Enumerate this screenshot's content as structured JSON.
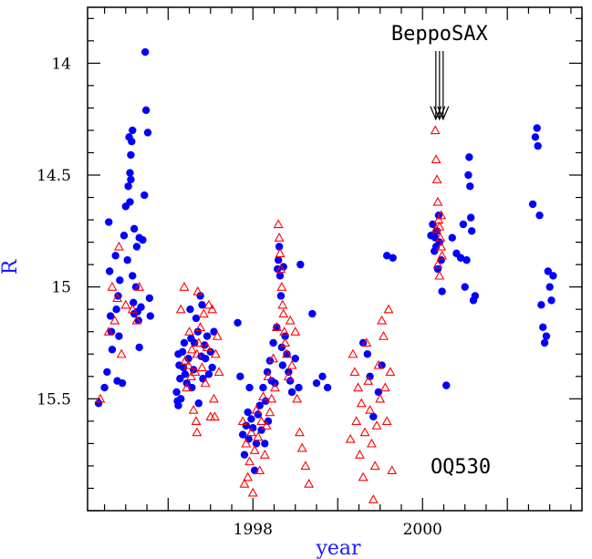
{
  "chart_data": {
    "type": "scatter",
    "title": "",
    "xlabel": "year",
    "ylabel": "R",
    "xlim": [
      1996.05,
      2001.88
    ],
    "ylim": [
      16.0,
      13.75
    ],
    "y_inverted": true,
    "x_ticks": [
      1998,
      2000
    ],
    "x_tick_labels": [
      "1998",
      "2000"
    ],
    "y_ticks": [
      14,
      14.5,
      15,
      15.5
    ],
    "y_tick_labels": [
      "14",
      "14.5",
      "15",
      "15.5"
    ],
    "grid": false,
    "annotations": [
      {
        "text": "BeppoSAX",
        "x": 2000.2,
        "arrow_tip_y": 14.25
      },
      {
        "text": "OQ530",
        "x": 2000.45,
        "y": 15.8
      }
    ],
    "colors": {
      "series_1": "#0000ff",
      "series_2": "#ff0000",
      "axis_title": "#1a1aff"
    },
    "series": [
      {
        "marker": "filled-circle",
        "color": "#0000ff",
        "points": [
          [
            1996.18,
            15.52
          ],
          [
            1996.25,
            15.45
          ],
          [
            1996.28,
            15.38
          ],
          [
            1996.3,
            14.71
          ],
          [
            1996.31,
            14.93
          ],
          [
            1996.32,
            15.13
          ],
          [
            1996.33,
            15.2
          ],
          [
            1996.34,
            15.28
          ],
          [
            1996.38,
            14.86
          ],
          [
            1996.39,
            15.1
          ],
          [
            1996.4,
            15.42
          ],
          [
            1996.41,
            15.04
          ],
          [
            1996.42,
            15.22
          ],
          [
            1996.43,
            14.97
          ],
          [
            1996.46,
            15.43
          ],
          [
            1996.48,
            14.77
          ],
          [
            1996.5,
            14.64
          ],
          [
            1996.52,
            14.88
          ],
          [
            1996.53,
            14.55
          ],
          [
            1996.54,
            14.33
          ],
          [
            1996.55,
            14.62
          ],
          [
            1996.55,
            14.49
          ],
          [
            1996.56,
            14.52
          ],
          [
            1996.56,
            14.41
          ],
          [
            1996.57,
            14.35
          ],
          [
            1996.58,
            14.3
          ],
          [
            1996.58,
            14.95
          ],
          [
            1996.59,
            15.07
          ],
          [
            1996.6,
            14.74
          ],
          [
            1996.6,
            15.12
          ],
          [
            1996.62,
            15.0
          ],
          [
            1996.63,
            14.82
          ],
          [
            1996.64,
            15.11
          ],
          [
            1996.65,
            15.15
          ],
          [
            1996.66,
            15.27
          ],
          [
            1996.66,
            14.78
          ],
          [
            1996.68,
            15.09
          ],
          [
            1996.7,
            14.79
          ],
          [
            1996.72,
            14.59
          ],
          [
            1996.73,
            13.95
          ],
          [
            1996.74,
            14.21
          ],
          [
            1996.76,
            14.31
          ],
          [
            1996.78,
            15.05
          ],
          [
            1996.79,
            15.13
          ],
          [
            1997.1,
            15.47
          ],
          [
            1997.11,
            15.51
          ],
          [
            1997.12,
            15.53
          ],
          [
            1997.12,
            15.3
          ],
          [
            1997.13,
            15.35
          ],
          [
            1997.14,
            15.41
          ],
          [
            1997.15,
            15.5
          ],
          [
            1997.17,
            15.29
          ],
          [
            1997.18,
            15.36
          ],
          [
            1997.19,
            15.25
          ],
          [
            1997.2,
            15.39
          ],
          [
            1997.22,
            15.43
          ],
          [
            1997.24,
            15.32
          ],
          [
            1997.26,
            15.1
          ],
          [
            1997.27,
            15.23
          ],
          [
            1997.28,
            15.45
          ],
          [
            1997.3,
            15.37
          ],
          [
            1997.31,
            15.25
          ],
          [
            1997.33,
            15.14
          ],
          [
            1997.35,
            15.2
          ],
          [
            1997.36,
            15.52
          ],
          [
            1997.38,
            15.04
          ],
          [
            1997.39,
            15.31
          ],
          [
            1997.4,
            15.08
          ],
          [
            1997.41,
            15.41
          ],
          [
            1997.43,
            15.26
          ],
          [
            1997.44,
            15.32
          ],
          [
            1997.46,
            15.22
          ],
          [
            1997.48,
            15.39
          ],
          [
            1997.5,
            15.29
          ],
          [
            1997.52,
            15.36
          ],
          [
            1997.54,
            15.2
          ],
          [
            1997.82,
            15.16
          ],
          [
            1997.85,
            15.4
          ],
          [
            1997.88,
            15.66
          ],
          [
            1997.9,
            15.75
          ],
          [
            1997.92,
            15.62
          ],
          [
            1997.94,
            15.56
          ],
          [
            1997.95,
            15.68
          ],
          [
            1997.96,
            15.45
          ],
          [
            1997.98,
            15.59
          ],
          [
            1998.0,
            15.63
          ],
          [
            1998.02,
            15.82
          ],
          [
            1998.04,
            15.7
          ],
          [
            1998.06,
            15.57
          ],
          [
            1998.08,
            15.53
          ],
          [
            1998.1,
            15.64
          ],
          [
            1998.12,
            15.45
          ],
          [
            1998.14,
            15.7
          ],
          [
            1998.15,
            15.51
          ],
          [
            1998.17,
            15.38
          ],
          [
            1998.18,
            15.6
          ],
          [
            1998.2,
            15.33
          ],
          [
            1998.22,
            15.42
          ],
          [
            1998.24,
            15.25
          ],
          [
            1998.26,
            15.43
          ],
          [
            1998.28,
            15.18
          ],
          [
            1998.29,
            14.92
          ],
          [
            1998.3,
            14.88
          ],
          [
            1998.31,
            14.82
          ],
          [
            1998.32,
            14.95
          ],
          [
            1998.33,
            15.04
          ],
          [
            1998.34,
            15.27
          ],
          [
            1998.35,
            15.35
          ],
          [
            1998.36,
            14.91
          ],
          [
            1998.38,
            15.22
          ],
          [
            1998.4,
            15.3
          ],
          [
            1998.42,
            15.38
          ],
          [
            1998.44,
            15.42
          ],
          [
            1998.46,
            15.47
          ],
          [
            1998.5,
            15.32
          ],
          [
            1998.54,
            15.45
          ],
          [
            1998.56,
            14.9
          ],
          [
            1998.7,
            15.12
          ],
          [
            1998.75,
            15.43
          ],
          [
            1998.82,
            15.4
          ],
          [
            1998.88,
            15.45
          ],
          [
            1999.3,
            15.25
          ],
          [
            1999.35,
            15.3
          ],
          [
            1999.38,
            15.4
          ],
          [
            1999.42,
            15.58
          ],
          [
            1999.48,
            15.47
          ],
          [
            1999.52,
            15.35
          ],
          [
            1999.58,
            14.86
          ],
          [
            1999.65,
            14.87
          ],
          [
            2000.1,
            14.77
          ],
          [
            2000.12,
            14.72
          ],
          [
            2000.14,
            14.84
          ],
          [
            2000.15,
            14.78
          ],
          [
            2000.16,
            14.82
          ],
          [
            2000.17,
            14.75
          ],
          [
            2000.18,
            14.92
          ],
          [
            2000.19,
            14.68
          ],
          [
            2000.2,
            14.8
          ],
          [
            2000.22,
            14.88
          ],
          [
            2000.23,
            15.02
          ],
          [
            2000.28,
            15.44
          ],
          [
            2000.35,
            14.78
          ],
          [
            2000.4,
            14.85
          ],
          [
            2000.45,
            14.87
          ],
          [
            2000.48,
            14.72
          ],
          [
            2000.5,
            15.0
          ],
          [
            2000.52,
            14.88
          ],
          [
            2000.54,
            14.5
          ],
          [
            2000.55,
            14.42
          ],
          [
            2000.56,
            14.55
          ],
          [
            2000.57,
            14.69
          ],
          [
            2000.58,
            14.75
          ],
          [
            2000.6,
            15.06
          ],
          [
            2000.62,
            15.04
          ],
          [
            2001.3,
            14.63
          ],
          [
            2001.33,
            14.33
          ],
          [
            2001.35,
            14.29
          ],
          [
            2001.36,
            14.37
          ],
          [
            2001.38,
            14.68
          ],
          [
            2001.4,
            15.08
          ],
          [
            2001.42,
            15.18
          ],
          [
            2001.44,
            15.25
          ],
          [
            2001.46,
            15.22
          ],
          [
            2001.48,
            14.93
          ],
          [
            2001.5,
            15.0
          ],
          [
            2001.52,
            15.06
          ],
          [
            2001.54,
            14.95
          ]
        ]
      },
      {
        "marker": "open-triangle",
        "color": "#ff0000",
        "points": [
          [
            1996.2,
            15.5
          ],
          [
            1996.3,
            15.2
          ],
          [
            1996.34,
            15.0
          ],
          [
            1996.37,
            15.15
          ],
          [
            1996.4,
            15.05
          ],
          [
            1996.42,
            14.82
          ],
          [
            1996.45,
            15.3
          ],
          [
            1996.5,
            15.08
          ],
          [
            1996.58,
            15.1
          ],
          [
            1996.63,
            15.15
          ],
          [
            1996.66,
            15.0
          ],
          [
            1997.15,
            15.1
          ],
          [
            1997.19,
            15.0
          ],
          [
            1997.2,
            15.33
          ],
          [
            1997.22,
            15.45
          ],
          [
            1997.24,
            15.35
          ],
          [
            1997.25,
            15.2
          ],
          [
            1997.27,
            15.4
          ],
          [
            1997.28,
            15.28
          ],
          [
            1997.3,
            15.55
          ],
          [
            1997.32,
            15.38
          ],
          [
            1997.33,
            15.6
          ],
          [
            1997.34,
            15.3
          ],
          [
            1997.35,
            15.02
          ],
          [
            1997.36,
            15.25
          ],
          [
            1997.38,
            15.18
          ],
          [
            1997.4,
            15.36
          ],
          [
            1997.42,
            15.12
          ],
          [
            1997.44,
            15.43
          ],
          [
            1997.46,
            15.27
          ],
          [
            1997.48,
            15.08
          ],
          [
            1997.5,
            15.58
          ],
          [
            1997.52,
            15.1
          ],
          [
            1997.54,
            15.5
          ],
          [
            1997.56,
            15.3
          ],
          [
            1997.58,
            15.22
          ],
          [
            1997.6,
            15.38
          ],
          [
            1997.34,
            15.65
          ],
          [
            1997.55,
            15.58
          ],
          [
            1997.88,
            15.6
          ],
          [
            1997.9,
            15.88
          ],
          [
            1997.92,
            15.7
          ],
          [
            1997.94,
            15.85
          ],
          [
            1997.96,
            15.78
          ],
          [
            1997.98,
            15.65
          ],
          [
            1998.0,
            15.92
          ],
          [
            1998.02,
            15.73
          ],
          [
            1998.04,
            15.55
          ],
          [
            1998.06,
            15.67
          ],
          [
            1998.08,
            15.82
          ],
          [
            1998.1,
            15.6
          ],
          [
            1998.12,
            15.49
          ],
          [
            1998.14,
            15.75
          ],
          [
            1998.16,
            15.62
          ],
          [
            1998.18,
            15.4
          ],
          [
            1998.2,
            15.56
          ],
          [
            1998.22,
            15.5
          ],
          [
            1998.24,
            15.32
          ],
          [
            1998.26,
            15.45
          ],
          [
            1998.28,
            15.18
          ],
          [
            1998.3,
            14.72
          ],
          [
            1998.31,
            14.78
          ],
          [
            1998.32,
            14.85
          ],
          [
            1998.33,
            14.92
          ],
          [
            1998.34,
            15.0
          ],
          [
            1998.35,
            15.08
          ],
          [
            1998.36,
            15.12
          ],
          [
            1998.37,
            15.2
          ],
          [
            1998.38,
            15.25
          ],
          [
            1998.4,
            15.3
          ],
          [
            1998.42,
            15.4
          ],
          [
            1998.44,
            15.15
          ],
          [
            1998.46,
            15.35
          ],
          [
            1998.5,
            15.2
          ],
          [
            1998.52,
            15.5
          ],
          [
            1998.55,
            15.65
          ],
          [
            1998.58,
            15.72
          ],
          [
            1998.62,
            15.8
          ],
          [
            1998.66,
            15.88
          ],
          [
            1999.15,
            15.68
          ],
          [
            1999.18,
            15.3
          ],
          [
            1999.2,
            15.38
          ],
          [
            1999.22,
            15.6
          ],
          [
            1999.24,
            15.45
          ],
          [
            1999.26,
            15.75
          ],
          [
            1999.28,
            15.52
          ],
          [
            1999.3,
            15.85
          ],
          [
            1999.32,
            15.65
          ],
          [
            1999.34,
            15.25
          ],
          [
            1999.36,
            15.42
          ],
          [
            1999.38,
            15.55
          ],
          [
            1999.4,
            15.7
          ],
          [
            1999.42,
            15.95
          ],
          [
            1999.44,
            15.8
          ],
          [
            1999.46,
            15.62
          ],
          [
            1999.48,
            15.35
          ],
          [
            1999.5,
            15.5
          ],
          [
            1999.52,
            15.15
          ],
          [
            1999.54,
            15.22
          ],
          [
            1999.56,
            15.45
          ],
          [
            1999.58,
            15.6
          ],
          [
            1999.6,
            15.1
          ],
          [
            1999.62,
            15.38
          ],
          [
            1999.64,
            15.82
          ],
          [
            2000.15,
            14.3
          ],
          [
            2000.16,
            14.43
          ],
          [
            2000.17,
            14.52
          ],
          [
            2000.18,
            14.62
          ],
          [
            2000.19,
            14.7
          ],
          [
            2000.2,
            14.73
          ],
          [
            2000.21,
            14.78
          ],
          [
            2000.22,
            14.82
          ],
          [
            2000.23,
            14.86
          ],
          [
            2000.18,
            14.9
          ],
          [
            2000.2,
            14.95
          ],
          [
            2000.16,
            14.74
          ],
          [
            2000.22,
            14.68
          ]
        ]
      }
    ]
  }
}
